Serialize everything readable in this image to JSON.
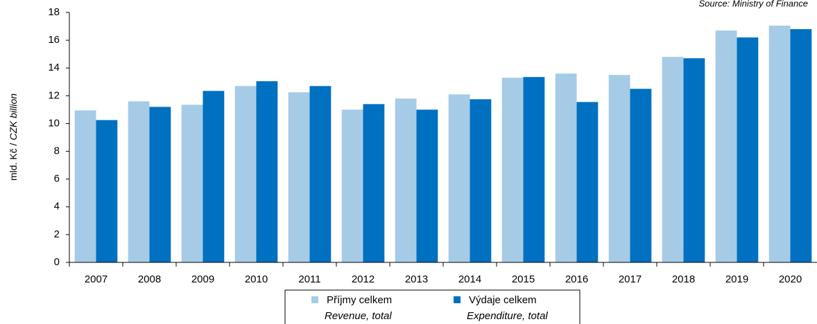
{
  "chart_data": {
    "type": "bar",
    "source": "Source: Ministry of Finance",
    "ylabel": {
      "czech": "mld. Kč /",
      "english": "CZK billion"
    },
    "categories": [
      "2007",
      "2008",
      "2009",
      "2010",
      "2011",
      "2012",
      "2013",
      "2014",
      "2015",
      "2016",
      "2017",
      "2018",
      "2019",
      "2020"
    ],
    "series": [
      {
        "name": "Příjmy celkem",
        "name_en": "Revenue, total",
        "color": "#a6cbe6",
        "values": [
          10.95,
          11.6,
          11.35,
          12.7,
          12.25,
          11.0,
          11.8,
          12.1,
          13.3,
          13.6,
          13.5,
          14.8,
          16.7,
          17.05
        ]
      },
      {
        "name": "Výdaje celkem",
        "name_en": "Expenditure, total",
        "color": "#0070c0",
        "values": [
          10.25,
          11.2,
          12.35,
          13.05,
          12.7,
          11.4,
          11.0,
          11.75,
          13.35,
          11.55,
          12.5,
          14.7,
          16.2,
          16.8
        ]
      }
    ],
    "ylim": [
      0,
      18
    ],
    "yticks": [
      0,
      2,
      4,
      6,
      8,
      10,
      12,
      14,
      16,
      18
    ],
    "grid": false
  }
}
